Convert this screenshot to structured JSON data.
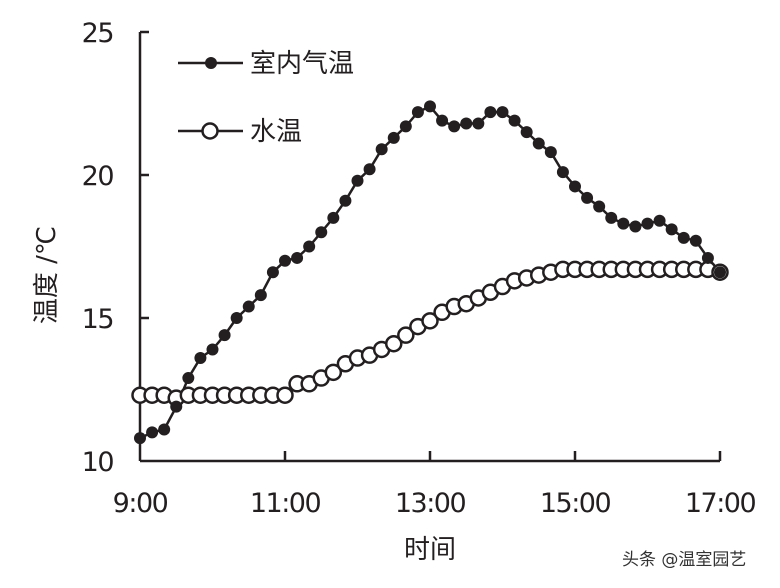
{
  "chart_data": {
    "type": "line",
    "title": "",
    "xlabel": "时间",
    "ylabel": "温度 /℃",
    "ylim": [
      10,
      25
    ],
    "yticks": [
      10,
      15,
      20,
      25
    ],
    "xtick_labels": [
      "9:00",
      "11:00",
      "13:00",
      "15:00",
      "17:00"
    ],
    "x_interval_minutes": 10,
    "grid": false,
    "legend_position": "upper-left",
    "x": [
      "9:00",
      "9:10",
      "9:20",
      "9:30",
      "9:40",
      "9:50",
      "10:00",
      "10:10",
      "10:20",
      "10:30",
      "10:40",
      "10:50",
      "11:00",
      "11:10",
      "11:20",
      "11:30",
      "11:40",
      "11:50",
      "12:00",
      "12:10",
      "12:20",
      "12:30",
      "12:40",
      "12:50",
      "13:00",
      "13:10",
      "13:20",
      "13:30",
      "13:40",
      "13:50",
      "14:00",
      "14:10",
      "14:20",
      "14:30",
      "14:40",
      "14:50",
      "15:00",
      "15:10",
      "15:20",
      "15:30",
      "15:40",
      "15:50",
      "16:00",
      "16:10",
      "16:20",
      "16:30",
      "16:40",
      "16:50",
      "17:00"
    ],
    "series": [
      {
        "name": "室内气温",
        "marker": "filled-circle",
        "color": "#231f20",
        "values": [
          10.8,
          11.0,
          11.1,
          11.9,
          12.9,
          13.6,
          13.9,
          14.4,
          15.0,
          15.4,
          15.8,
          16.6,
          17.0,
          17.1,
          17.5,
          18.0,
          18.5,
          19.1,
          19.8,
          20.2,
          20.9,
          21.3,
          21.7,
          22.2,
          22.4,
          21.9,
          21.7,
          21.8,
          21.8,
          22.2,
          22.2,
          21.9,
          21.5,
          21.1,
          20.8,
          20.1,
          19.6,
          19.2,
          18.9,
          18.5,
          18.3,
          18.2,
          18.3,
          18.4,
          18.1,
          17.8,
          17.7,
          17.1,
          16.6
        ]
      },
      {
        "name": "水温",
        "marker": "open-circle",
        "color": "#231f20",
        "values": [
          12.3,
          12.3,
          12.3,
          12.2,
          12.3,
          12.3,
          12.3,
          12.3,
          12.3,
          12.3,
          12.3,
          12.3,
          12.3,
          12.7,
          12.7,
          12.9,
          13.1,
          13.4,
          13.6,
          13.7,
          13.9,
          14.1,
          14.4,
          14.7,
          14.9,
          15.2,
          15.4,
          15.5,
          15.7,
          15.9,
          16.1,
          16.3,
          16.4,
          16.5,
          16.6,
          16.7,
          16.7,
          16.7,
          16.7,
          16.7,
          16.7,
          16.7,
          16.7,
          16.7,
          16.7,
          16.7,
          16.7,
          16.7,
          16.6
        ]
      }
    ]
  },
  "legend": {
    "items": [
      {
        "label": "室内气温",
        "marker": "filled-circle"
      },
      {
        "label": "水温",
        "marker": "open-circle"
      }
    ]
  },
  "axes": {
    "x_title": "时间",
    "y_title": "温度 /℃"
  },
  "watermark": "头条 @温室园艺"
}
